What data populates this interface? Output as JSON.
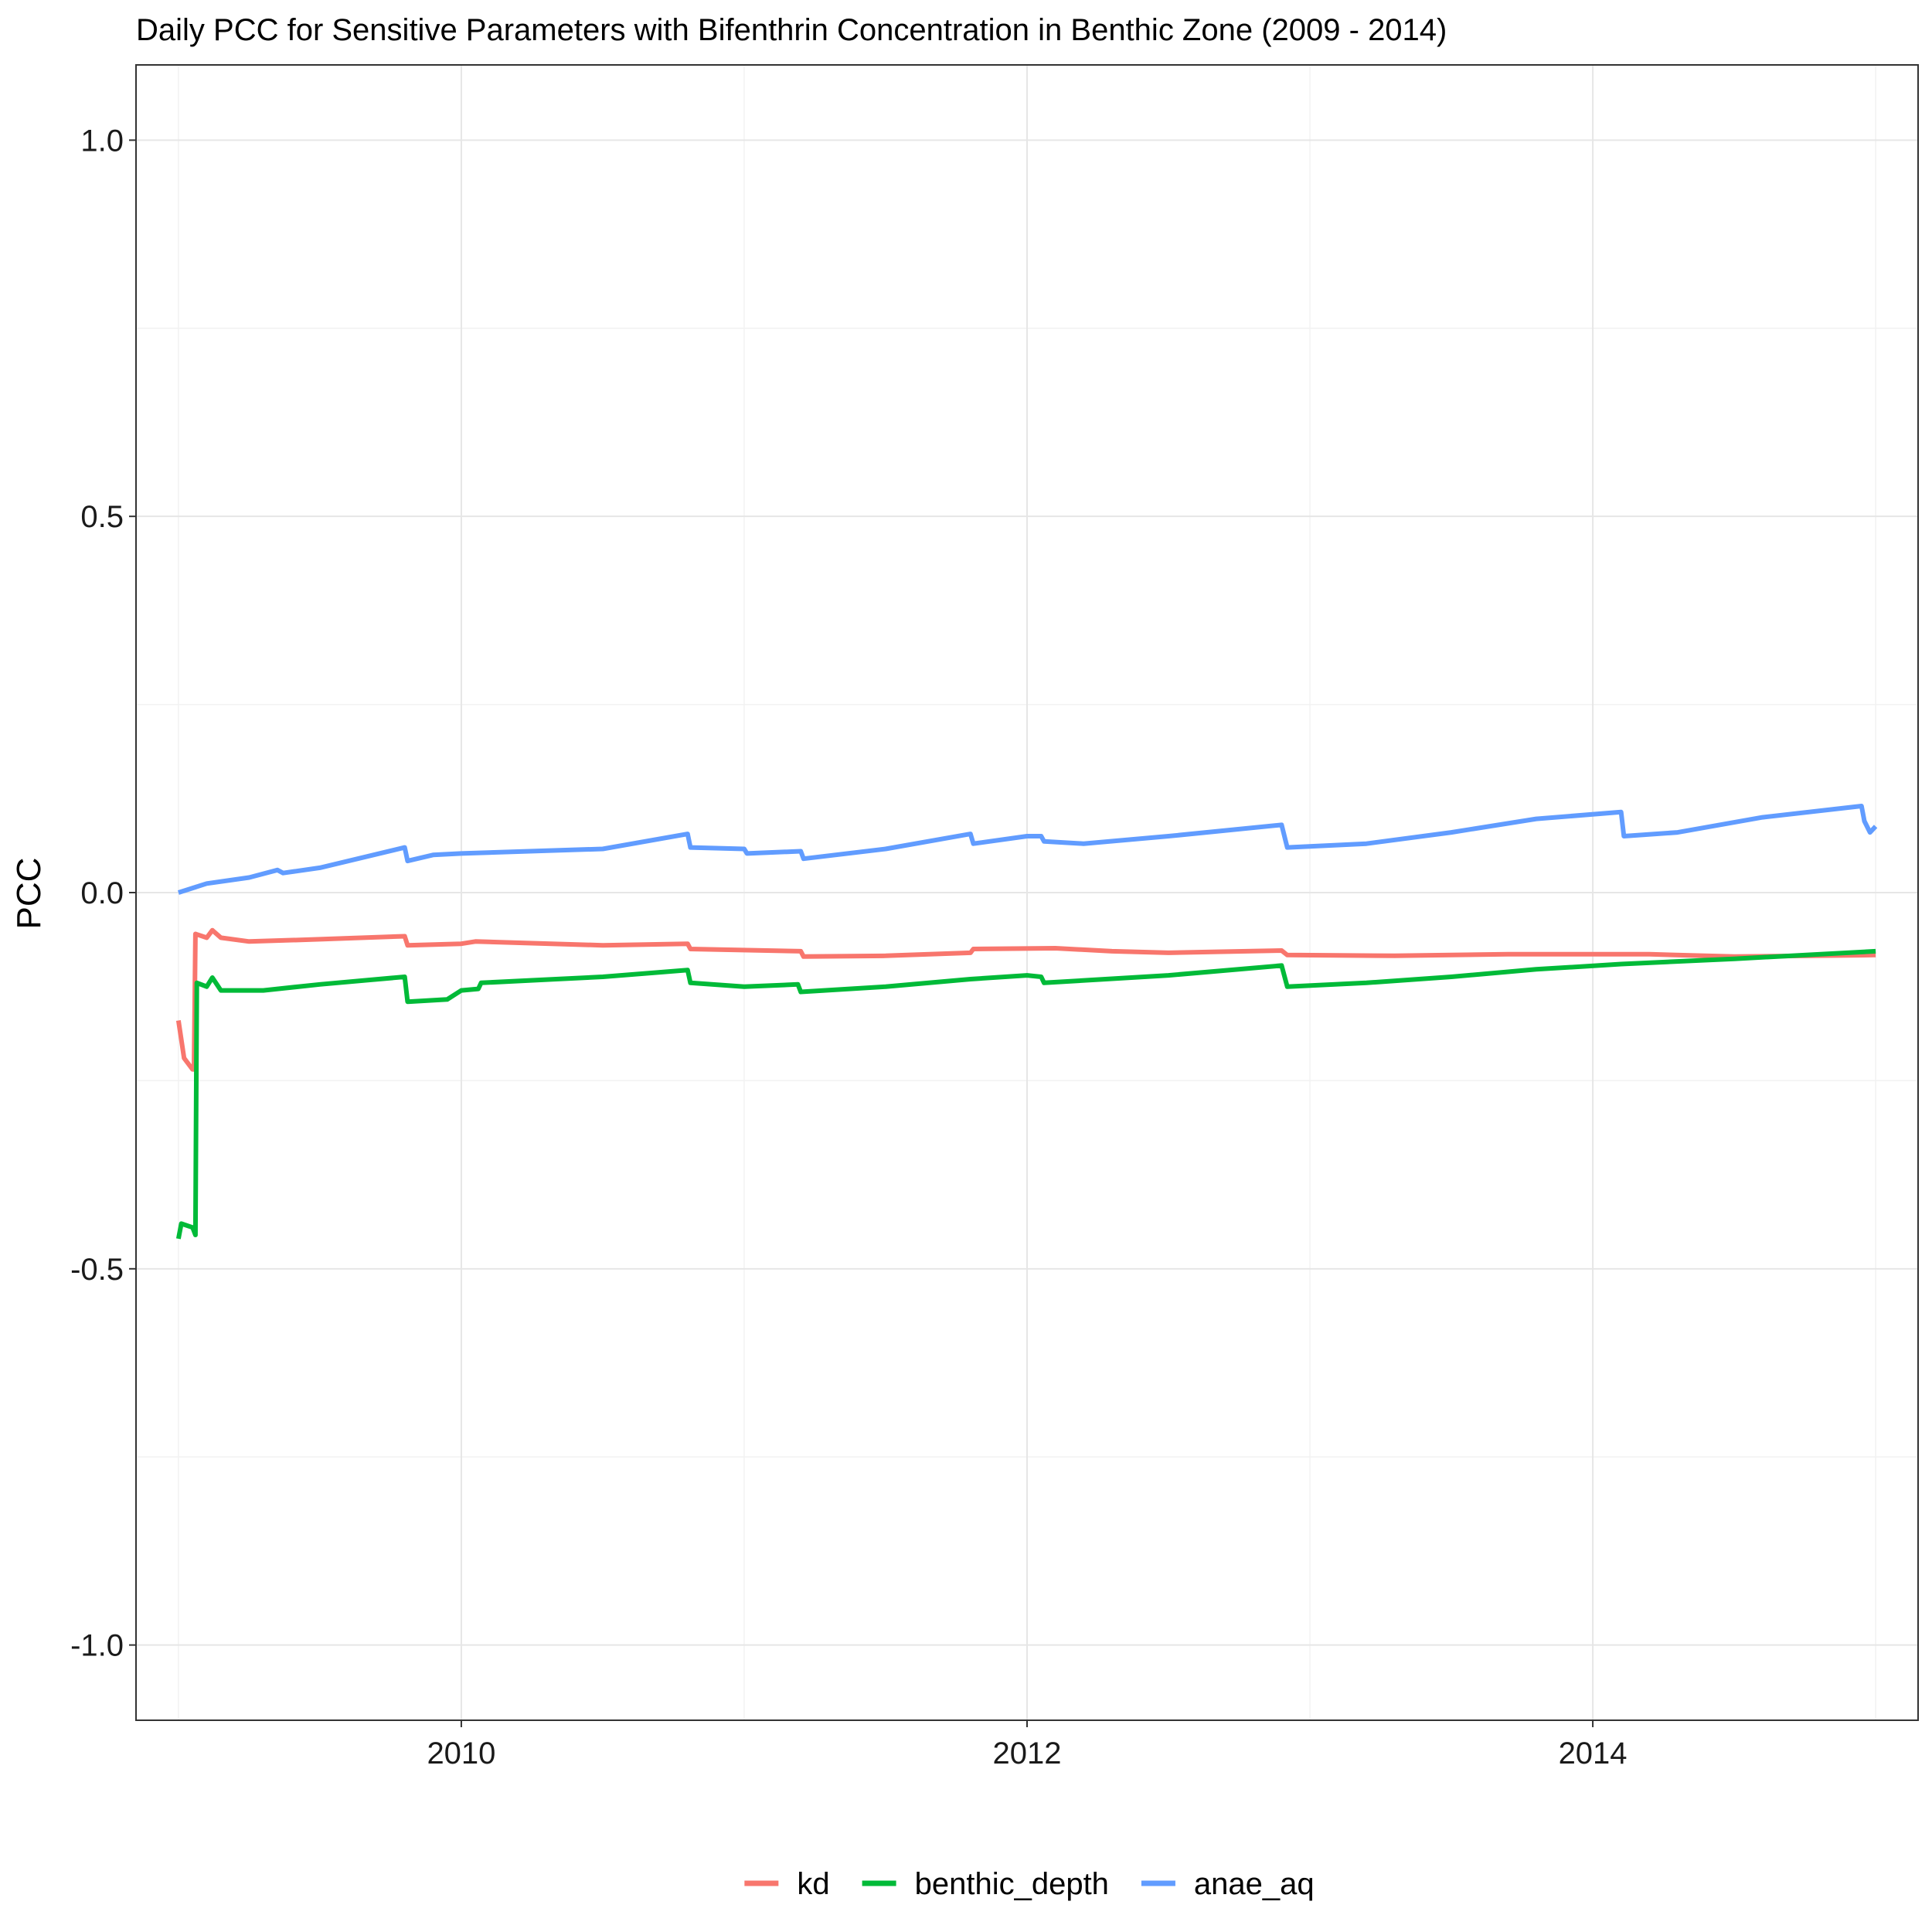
{
  "chart_data": {
    "type": "line",
    "title": "Daily PCC for Sensitive Parameters with Bifenthrin Concentration in Benthic Zone (2009 - 2014)",
    "xlabel": "",
    "ylabel": "PCC",
    "xlim": [
      2008.85,
      2015.15
    ],
    "ylim": [
      -1.1,
      1.1
    ],
    "x_ticks": [
      2010,
      2012,
      2014
    ],
    "x_tick_labels": [
      "2010",
      "2012",
      "2014"
    ],
    "y_ticks": [
      1.0,
      0.5,
      0.0,
      -0.5,
      -1.0
    ],
    "y_tick_labels": [
      "1.0",
      "0.5",
      "0.0",
      "-0.5",
      "-1.0"
    ],
    "grid": true,
    "legend_position": "bottom",
    "series": [
      {
        "name": "kd",
        "color": "#F8766D",
        "points": [
          [
            2009.0,
            -0.17
          ],
          [
            2009.02,
            -0.22
          ],
          [
            2009.05,
            -0.235
          ],
          [
            2009.055,
            -0.235
          ],
          [
            2009.06,
            -0.055
          ],
          [
            2009.1,
            -0.06
          ],
          [
            2009.12,
            -0.05
          ],
          [
            2009.15,
            -0.06
          ],
          [
            2009.25,
            -0.065
          ],
          [
            2009.5,
            -0.062
          ],
          [
            2009.8,
            -0.058
          ],
          [
            2009.81,
            -0.07
          ],
          [
            2010.0,
            -0.068
          ],
          [
            2010.05,
            -0.065
          ],
          [
            2010.5,
            -0.07
          ],
          [
            2010.8,
            -0.068
          ],
          [
            2010.81,
            -0.075
          ],
          [
            2011.2,
            -0.078
          ],
          [
            2011.21,
            -0.085
          ],
          [
            2011.5,
            -0.084
          ],
          [
            2011.8,
            -0.08
          ],
          [
            2011.81,
            -0.075
          ],
          [
            2012.1,
            -0.074
          ],
          [
            2012.3,
            -0.078
          ],
          [
            2012.5,
            -0.08
          ],
          [
            2012.9,
            -0.077
          ],
          [
            2012.92,
            -0.083
          ],
          [
            2013.3,
            -0.084
          ],
          [
            2013.7,
            -0.082
          ],
          [
            2014.2,
            -0.082
          ],
          [
            2014.5,
            -0.085
          ],
          [
            2015.0,
            -0.083
          ]
        ]
      },
      {
        "name": "benthic_depth",
        "color": "#00BA38",
        "points": [
          [
            2009.0,
            -0.46
          ],
          [
            2009.01,
            -0.44
          ],
          [
            2009.05,
            -0.445
          ],
          [
            2009.06,
            -0.455
          ],
          [
            2009.065,
            -0.12
          ],
          [
            2009.1,
            -0.125
          ],
          [
            2009.12,
            -0.113
          ],
          [
            2009.15,
            -0.13
          ],
          [
            2009.3,
            -0.13
          ],
          [
            2009.5,
            -0.122
          ],
          [
            2009.8,
            -0.112
          ],
          [
            2009.81,
            -0.145
          ],
          [
            2009.95,
            -0.142
          ],
          [
            2010.0,
            -0.13
          ],
          [
            2010.06,
            -0.128
          ],
          [
            2010.07,
            -0.12
          ],
          [
            2010.5,
            -0.112
          ],
          [
            2010.8,
            -0.103
          ],
          [
            2010.81,
            -0.12
          ],
          [
            2011.0,
            -0.125
          ],
          [
            2011.19,
            -0.122
          ],
          [
            2011.2,
            -0.132
          ],
          [
            2011.5,
            -0.125
          ],
          [
            2011.8,
            -0.115
          ],
          [
            2012.0,
            -0.11
          ],
          [
            2012.05,
            -0.112
          ],
          [
            2012.06,
            -0.12
          ],
          [
            2012.5,
            -0.11
          ],
          [
            2012.9,
            -0.097
          ],
          [
            2012.92,
            -0.125
          ],
          [
            2013.2,
            -0.12
          ],
          [
            2013.5,
            -0.112
          ],
          [
            2013.8,
            -0.102
          ],
          [
            2014.1,
            -0.095
          ],
          [
            2014.5,
            -0.088
          ],
          [
            2015.0,
            -0.078
          ]
        ]
      },
      {
        "name": "anae_aq",
        "color": "#619CFF",
        "points": [
          [
            2009.0,
            0.0
          ],
          [
            2009.1,
            0.012
          ],
          [
            2009.25,
            0.02
          ],
          [
            2009.35,
            0.03
          ],
          [
            2009.37,
            0.026
          ],
          [
            2009.5,
            0.033
          ],
          [
            2009.8,
            0.06
          ],
          [
            2009.81,
            0.042
          ],
          [
            2009.9,
            0.05
          ],
          [
            2010.0,
            0.052
          ],
          [
            2010.5,
            0.058
          ],
          [
            2010.8,
            0.078
          ],
          [
            2010.81,
            0.06
          ],
          [
            2011.0,
            0.058
          ],
          [
            2011.01,
            0.052
          ],
          [
            2011.2,
            0.055
          ],
          [
            2011.21,
            0.045
          ],
          [
            2011.5,
            0.058
          ],
          [
            2011.8,
            0.078
          ],
          [
            2011.81,
            0.065
          ],
          [
            2012.0,
            0.075
          ],
          [
            2012.05,
            0.075
          ],
          [
            2012.06,
            0.068
          ],
          [
            2012.2,
            0.065
          ],
          [
            2012.5,
            0.075
          ],
          [
            2012.9,
            0.09
          ],
          [
            2012.92,
            0.06
          ],
          [
            2013.2,
            0.065
          ],
          [
            2013.5,
            0.08
          ],
          [
            2013.8,
            0.098
          ],
          [
            2014.1,
            0.107
          ],
          [
            2014.11,
            0.075
          ],
          [
            2014.3,
            0.08
          ],
          [
            2014.6,
            0.1
          ],
          [
            2014.95,
            0.115
          ],
          [
            2014.96,
            0.095
          ],
          [
            2014.98,
            0.08
          ],
          [
            2015.0,
            0.088
          ]
        ]
      }
    ]
  }
}
